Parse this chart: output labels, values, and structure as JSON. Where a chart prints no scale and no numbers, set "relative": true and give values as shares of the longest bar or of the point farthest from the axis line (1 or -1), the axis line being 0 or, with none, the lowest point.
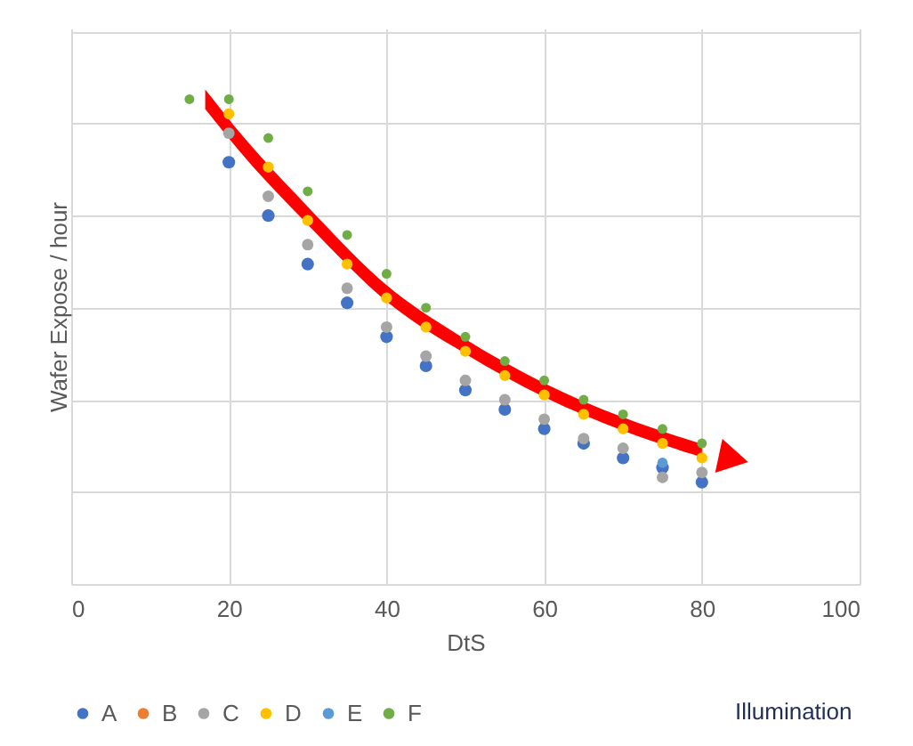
{
  "chart_data": {
    "type": "scatter",
    "xlabel": "DtS",
    "ylabel": "Wafer Expose / hour",
    "relative": true,
    "x": [
      15,
      20,
      25,
      30,
      35,
      40,
      45,
      50,
      55,
      60,
      65,
      70,
      75,
      80
    ],
    "xlim": [
      0,
      100
    ],
    "xticks": [
      0,
      20,
      40,
      60,
      80,
      100
    ],
    "series": [
      {
        "name": "A",
        "color": "#4472c4",
        "values": [
          null,
          0.87,
          0.76,
          0.66,
          0.58,
          0.51,
          0.45,
          0.4,
          0.36,
          0.32,
          0.29,
          0.26,
          0.24,
          0.21
        ]
      },
      {
        "name": "B",
        "color": "#ed7d31",
        "values": [
          null,
          null,
          null,
          null,
          null,
          null,
          null,
          null,
          null,
          null,
          null,
          null,
          null,
          null
        ]
      },
      {
        "name": "C",
        "color": "#a5a5a5",
        "values": [
          null,
          0.93,
          0.8,
          0.7,
          0.61,
          0.53,
          0.47,
          0.42,
          0.38,
          0.34,
          0.3,
          0.28,
          0.22,
          0.23
        ]
      },
      {
        "name": "D",
        "color": "#ffc000",
        "values": [
          null,
          0.97,
          0.86,
          0.75,
          0.66,
          0.59,
          0.53,
          0.48,
          0.43,
          0.39,
          0.35,
          0.32,
          0.29,
          0.26
        ]
      },
      {
        "name": "E",
        "color": "#5b9bd5",
        "values": [
          null,
          null,
          null,
          null,
          null,
          null,
          null,
          null,
          null,
          null,
          null,
          null,
          0.25,
          null
        ]
      },
      {
        "name": "F",
        "color": "#70ad47",
        "values": [
          1.0,
          1.0,
          0.92,
          0.81,
          0.72,
          0.64,
          0.57,
          0.51,
          0.46,
          0.42,
          0.38,
          0.35,
          0.32,
          0.29
        ]
      }
    ],
    "grid": true,
    "legend": "bottom",
    "marker": "circle",
    "annotations": [
      "Illumination"
    ]
  }
}
